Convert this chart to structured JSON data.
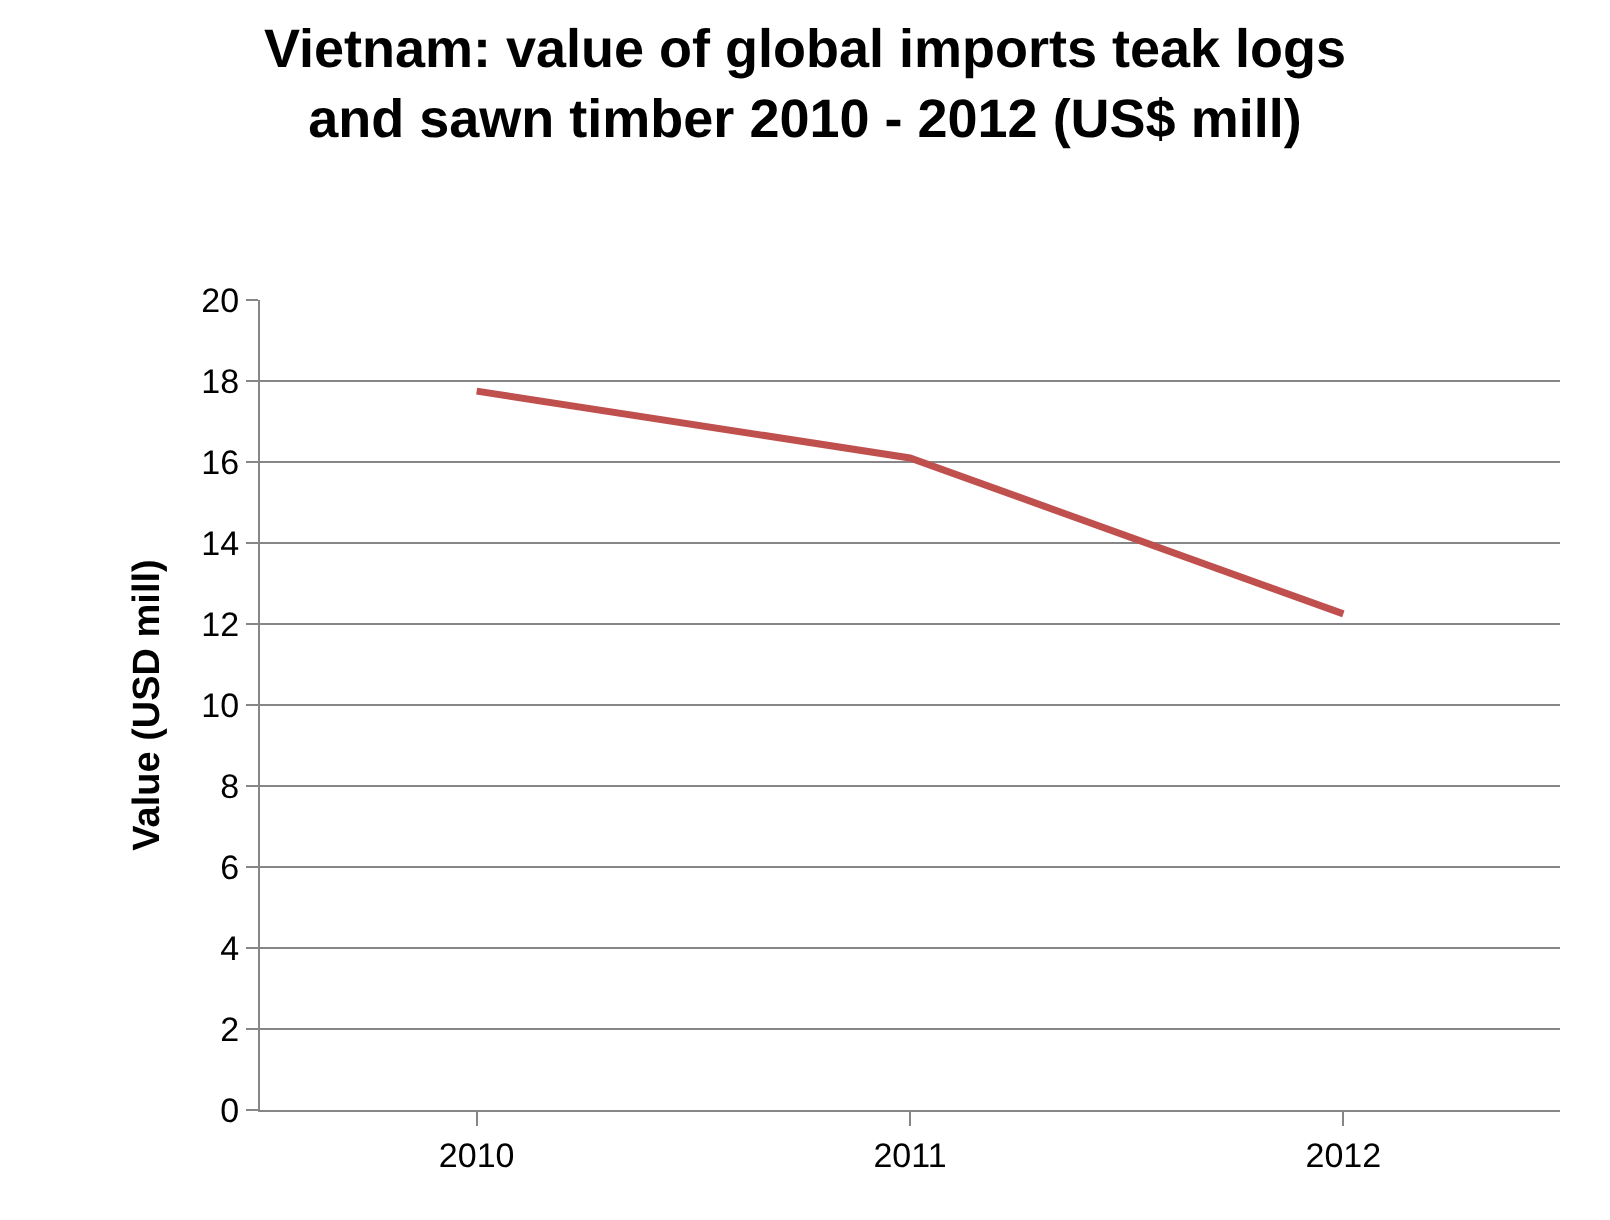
{
  "chart_data": {
    "type": "line",
    "title": "Vietnam: value of global imports teak logs\nand sawn timber 2010 - 2012 (US$ mill)",
    "ylabel": "Value (USD mill)",
    "categories": [
      "2010",
      "2011",
      "2012"
    ],
    "series": [
      {
        "color": "#c0504d",
        "values": [
          17.75,
          16.1,
          12.25
        ]
      }
    ],
    "ylim": [
      0,
      20
    ],
    "yticks": [
      0,
      2,
      4,
      6,
      8,
      10,
      12,
      14,
      16,
      18,
      20
    ],
    "grid": "y",
    "legend": false,
    "marker": "none",
    "line_style": "solid"
  }
}
